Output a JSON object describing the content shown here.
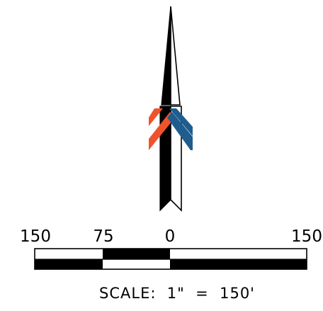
{
  "north_arrow": {
    "icon": "north-arrow-icon",
    "colors": {
      "left_band": "#F0532B",
      "right_band": "#1F5D8E",
      "body": "#000000",
      "outline": "#000000",
      "fill_light": "#ffffff"
    }
  },
  "scale_bar": {
    "tick_labels": [
      "150",
      "75",
      "0",
      "150"
    ],
    "segments_top": [
      "white",
      "black",
      "white"
    ],
    "segments_bottom": [
      "black",
      "white",
      "black"
    ],
    "note": "SCALE:  1\"  =  150'"
  }
}
